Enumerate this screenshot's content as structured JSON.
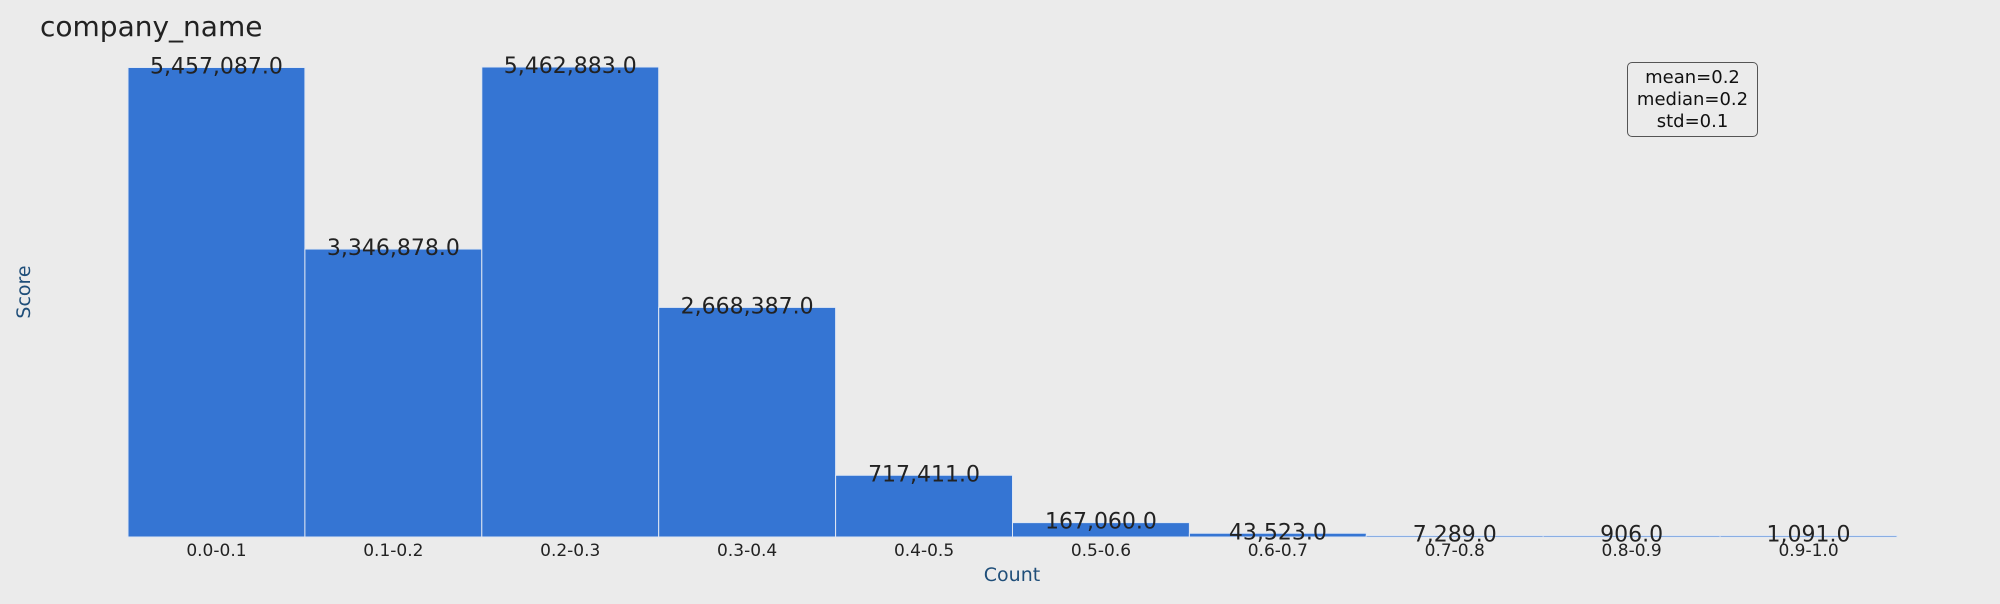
{
  "chart_data": {
    "type": "bar",
    "title": "company_name",
    "xlabel": "Count",
    "ylabel": "Score",
    "categories": [
      "0.0-0.1",
      "0.1-0.2",
      "0.2-0.3",
      "0.3-0.4",
      "0.4-0.5",
      "0.5-0.6",
      "0.6-0.7",
      "0.7-0.8",
      "0.8-0.9",
      "0.9-1.0"
    ],
    "values": [
      5457087.0,
      3346878.0,
      5462883.0,
      2668387.0,
      717411.0,
      167060.0,
      43523.0,
      7289.0,
      906.0,
      1091.0
    ],
    "value_labels": [
      "5,457,087.0",
      "3,346,878.0",
      "5,462,883.0",
      "2,668,387.0",
      "717,411.0",
      "167,060.0",
      "43,523.0",
      "7,289.0",
      "906.0",
      "1,091.0"
    ],
    "ylim": [
      0,
      5462883.0
    ],
    "grid": false,
    "bar_color": "#3575d3",
    "axis_label_color": "#1f4e79",
    "stats": {
      "mean": "mean=0.2",
      "median": "median=0.2",
      "std": "std=0.1"
    }
  }
}
